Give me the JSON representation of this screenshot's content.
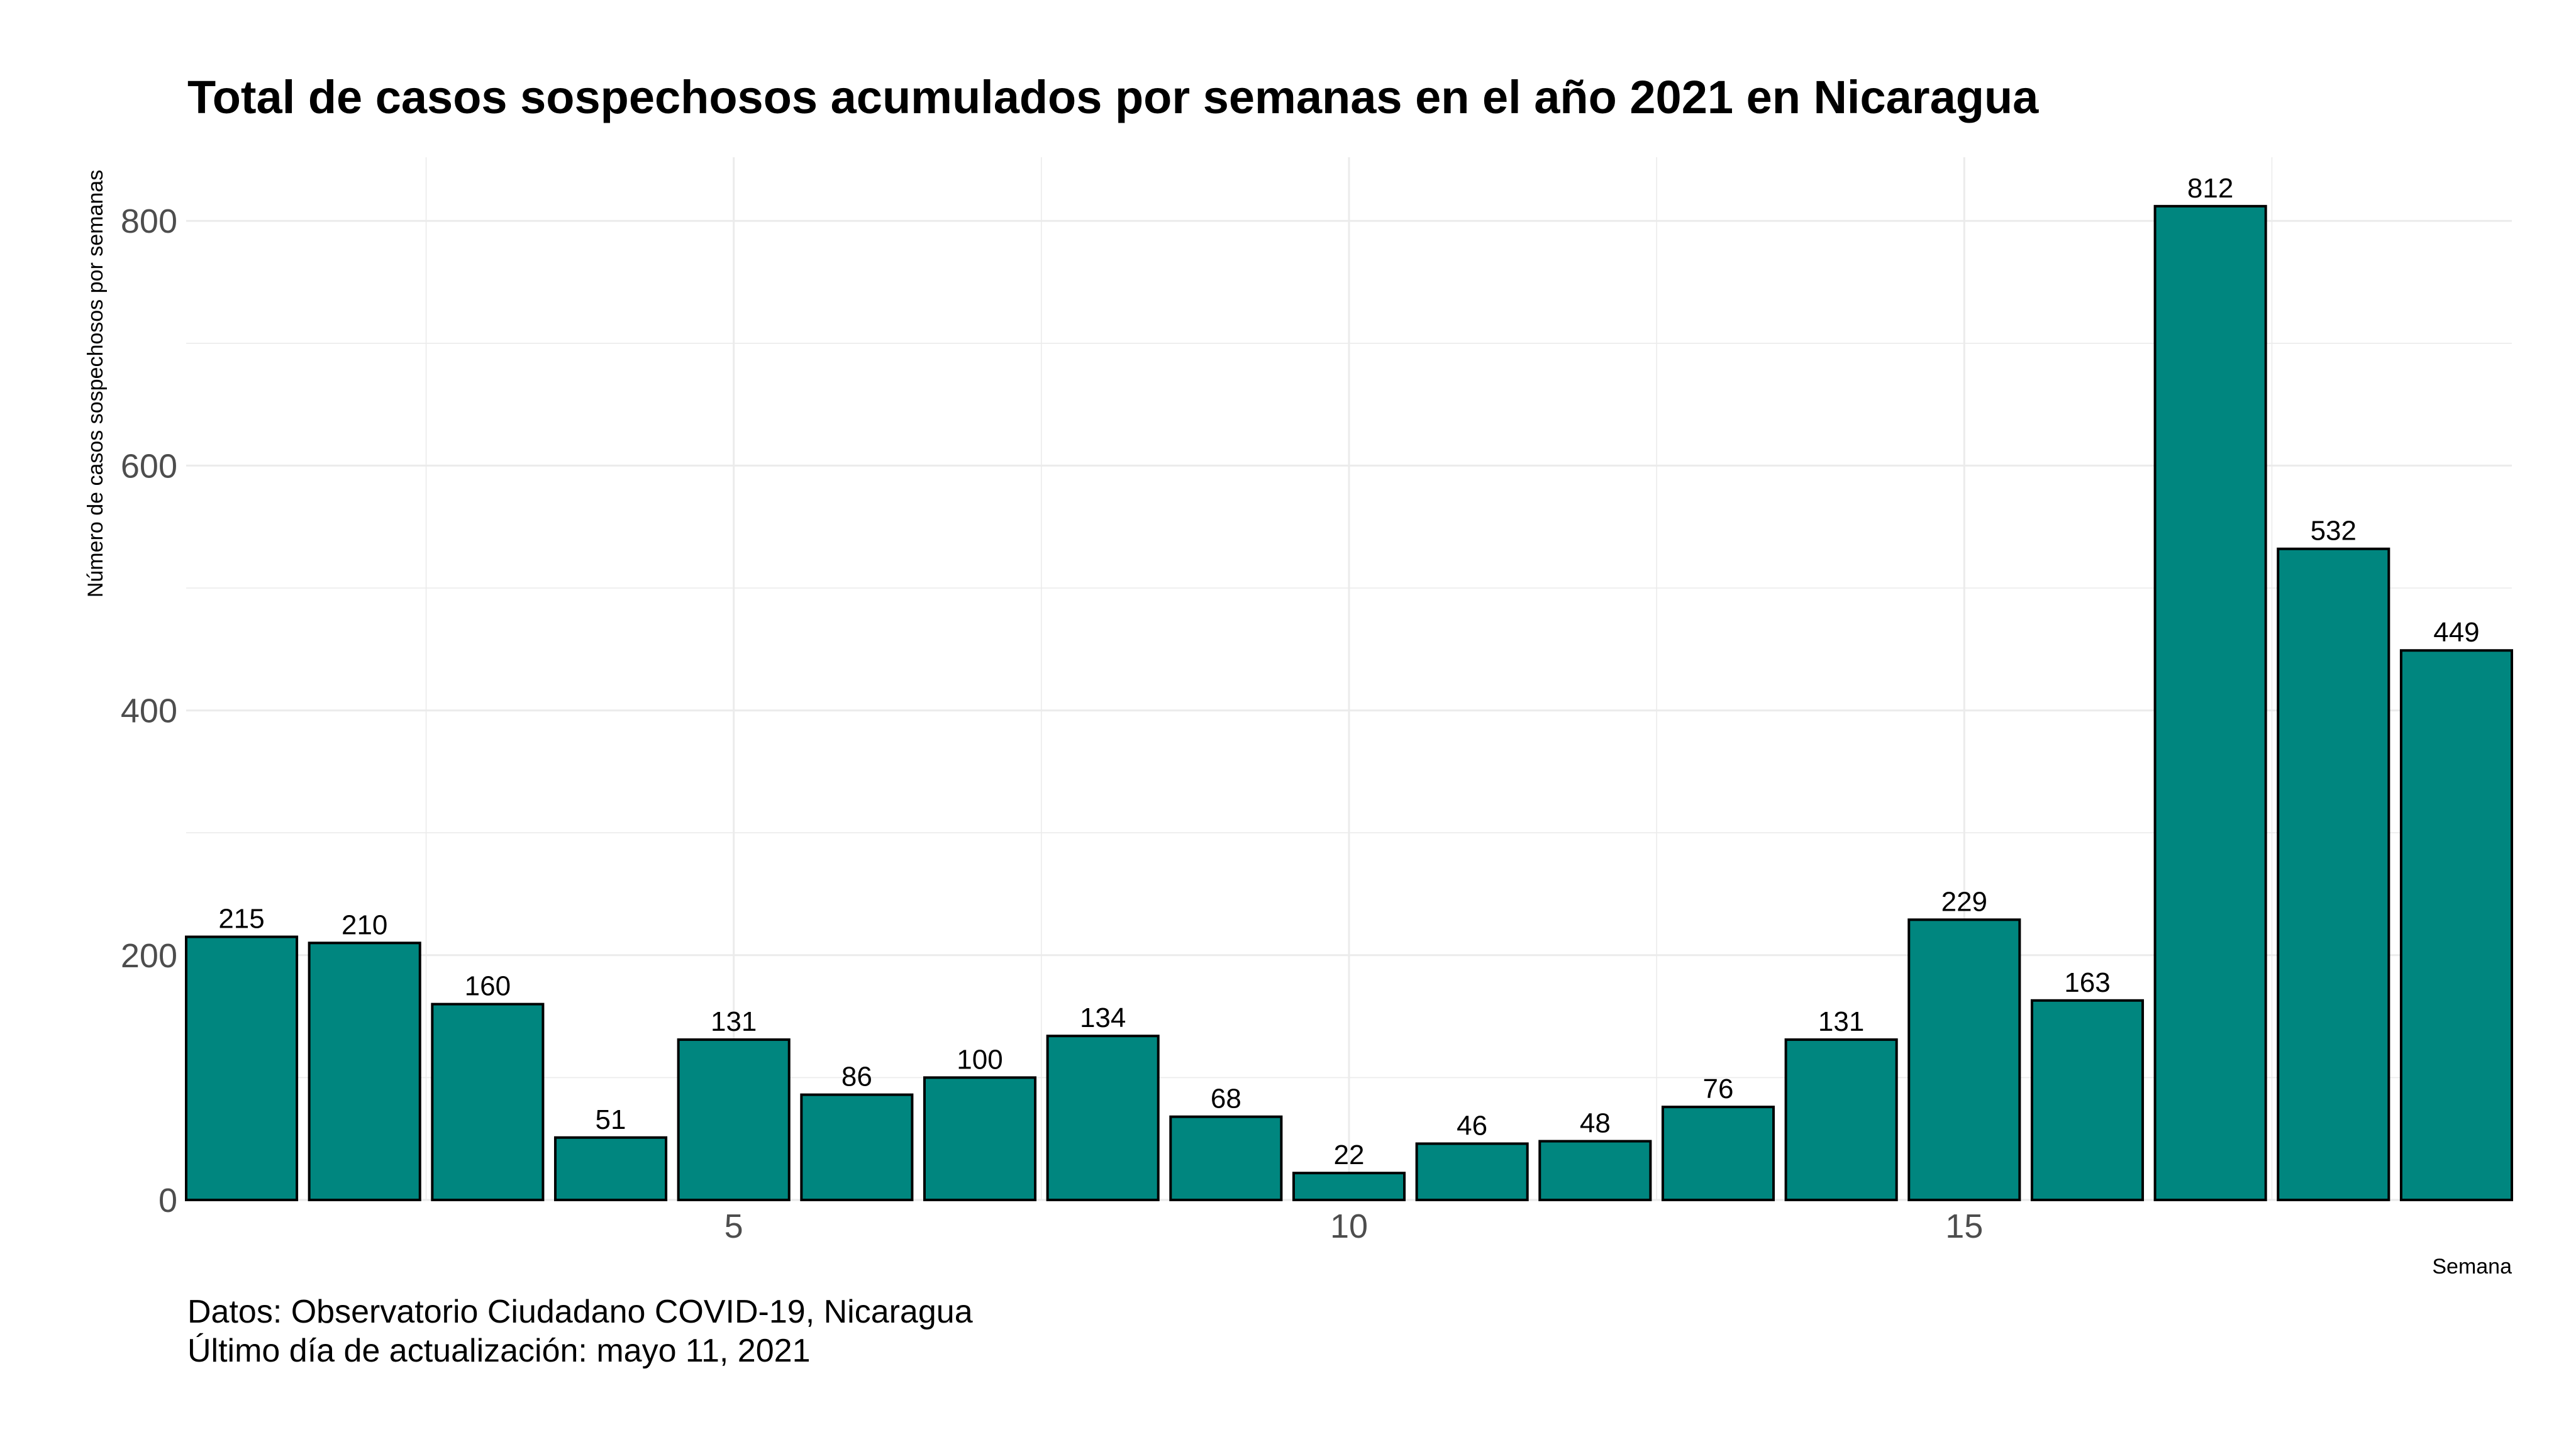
{
  "chart_data": {
    "type": "bar",
    "title": "Total de casos sospechosos acumulados por semanas en el año 2021 en Nicaragua",
    "xlabel": "Semana",
    "ylabel": "Número de casos sospechosos por semanas",
    "x": [
      1,
      2,
      3,
      4,
      5,
      6,
      7,
      8,
      9,
      10,
      11,
      12,
      13,
      14,
      15,
      16,
      17,
      18,
      19
    ],
    "values": [
      215,
      210,
      160,
      51,
      131,
      86,
      100,
      134,
      68,
      22,
      46,
      48,
      76,
      131,
      229,
      163,
      812,
      532,
      449
    ],
    "xticks": [
      5,
      10,
      15
    ],
    "yticks": [
      0,
      200,
      400,
      600,
      800
    ],
    "xlim": [
      0.55,
      19.45
    ],
    "ylim": [
      0,
      852
    ],
    "bar_color": "#00867F",
    "bar_outline": "#000000",
    "grid": true,
    "legend": "none",
    "caption": [
      "Datos: Observatorio Ciudadano COVID-19, Nicaragua",
      "Último día de actualización: mayo 11, 2021"
    ]
  }
}
